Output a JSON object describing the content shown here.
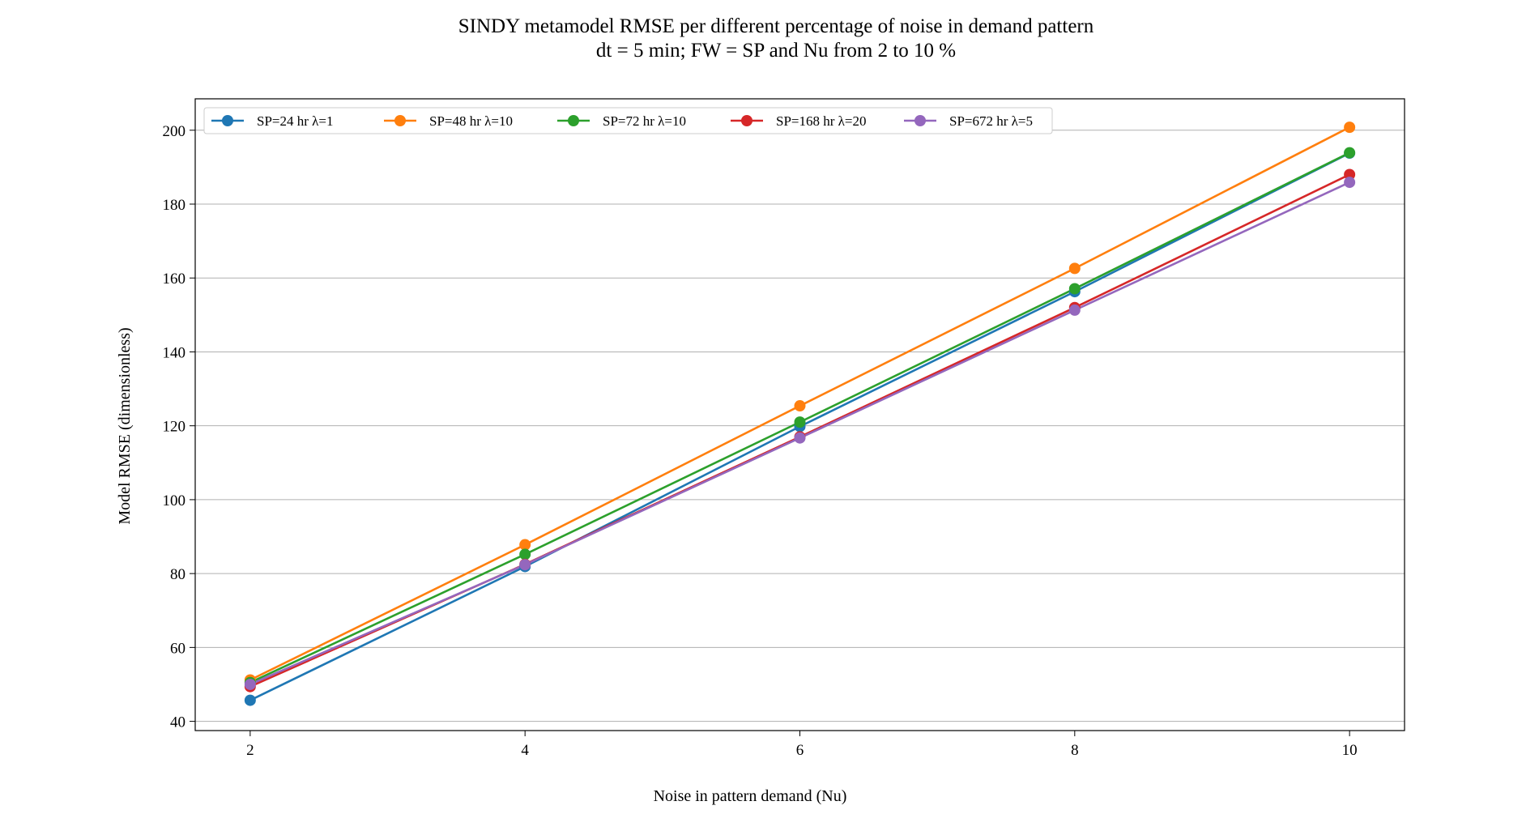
{
  "chart_data": {
    "type": "line",
    "title": "SINDY metamodel RMSE per different percentage of noise in demand pattern",
    "subtitle": "dt = 5 min; FW = SP and Nu from 2 to 10 %",
    "xlabel": "Noise in pattern demand (Nu)",
    "ylabel": "Model RMSE (dimensionless)",
    "x": [
      2,
      4,
      6,
      8,
      10
    ],
    "x_ticks": [
      "2",
      "4",
      "6",
      "8",
      "10"
    ],
    "y_ticks": [
      "40",
      "60",
      "80",
      "100",
      "120",
      "140",
      "160",
      "180",
      "200"
    ],
    "xlim": [
      1.6,
      10.4
    ],
    "ylim": [
      37.5,
      208.5
    ],
    "grid": "horizontal",
    "legend_position": "top-left",
    "series": [
      {
        "name": "SP=24 hr λ=1",
        "color": "#1f77b4",
        "values": [
          45.7,
          81.9,
          119.8,
          156.3,
          193.8
        ]
      },
      {
        "name": "SP=48 hr λ=10",
        "color": "#ff7f0e",
        "values": [
          51.2,
          87.8,
          125.4,
          162.6,
          200.8
        ]
      },
      {
        "name": "SP=72 hr λ=10",
        "color": "#2ca02c",
        "values": [
          50.5,
          85.2,
          121.0,
          157.1,
          193.9
        ]
      },
      {
        "name": "SP=168 hr λ=20",
        "color": "#d62728",
        "values": [
          49.4,
          82.5,
          117.0,
          152.0,
          188.0
        ]
      },
      {
        "name": "SP=672 hr λ=5",
        "color": "#9467bd",
        "values": [
          50.0,
          82.4,
          116.7,
          151.3,
          185.9
        ]
      }
    ]
  }
}
